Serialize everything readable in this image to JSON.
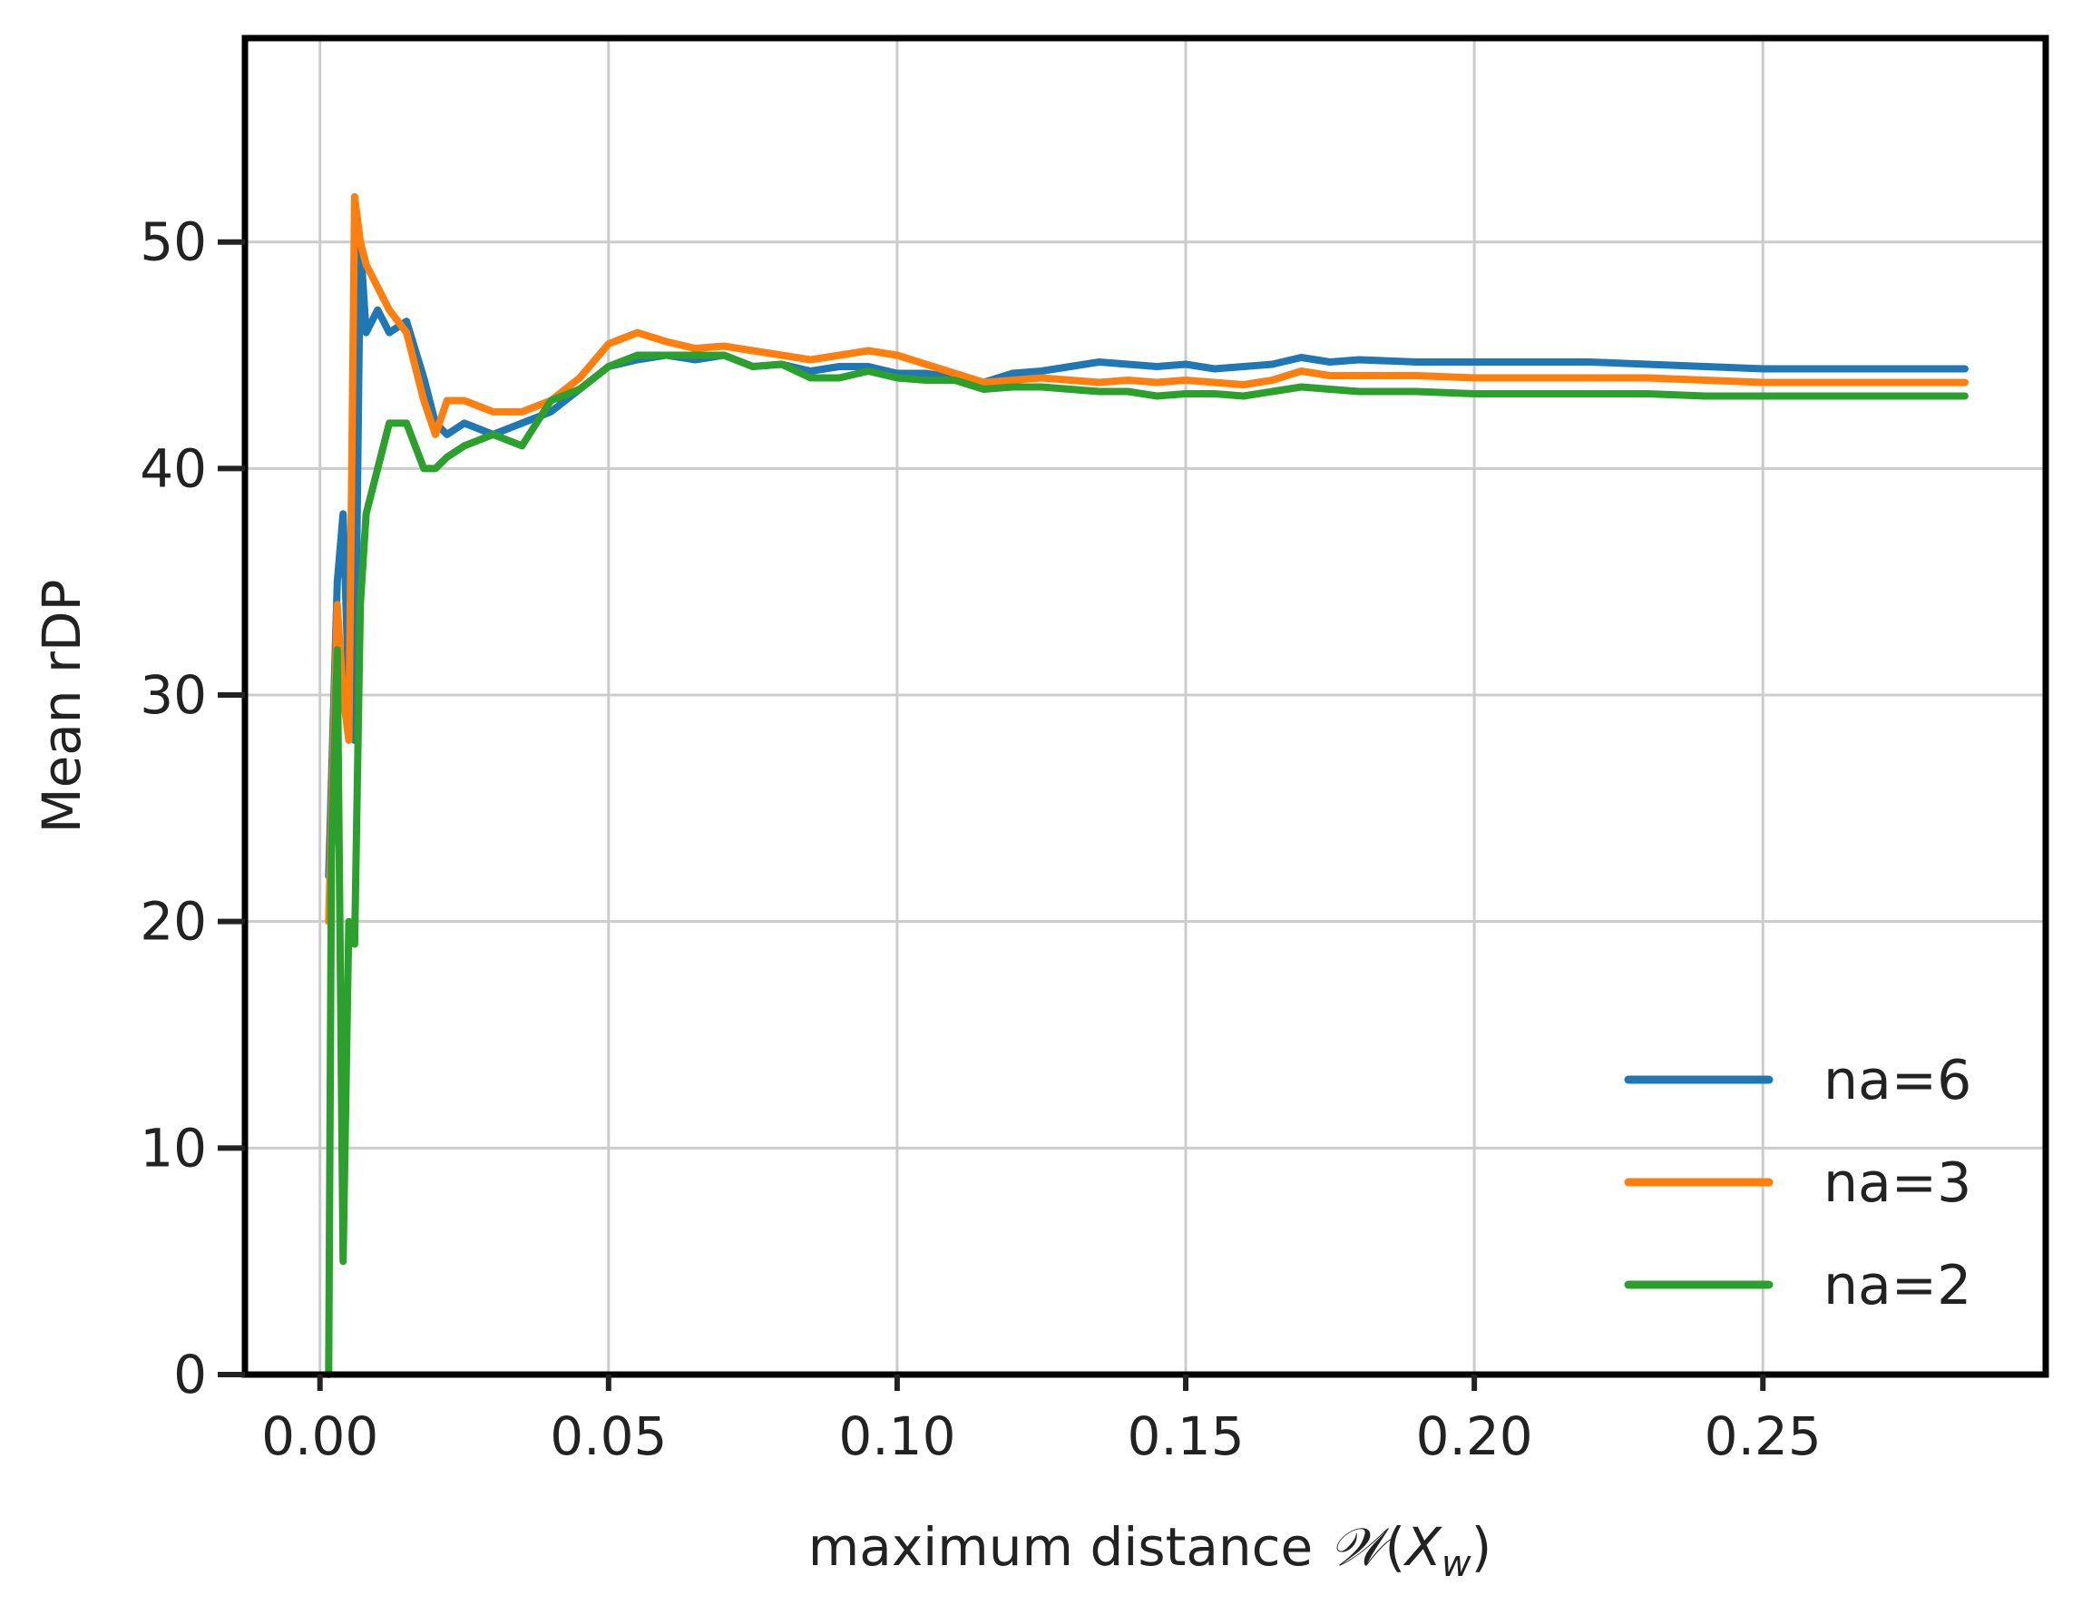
{
  "chart_data": {
    "type": "line",
    "xlabel": "maximum distance 𝒲(X_w)",
    "xlabel_parts": {
      "main": "maximum distance ",
      "symbol": "𝒲",
      "open": "(",
      "var": "X",
      "sub": "w",
      "close": ")"
    },
    "ylabel": "Mean rDP",
    "xlim": [
      -0.013,
      0.299
    ],
    "ylim": [
      0,
      59
    ],
    "x_ticks": [
      0.0,
      0.05,
      0.1,
      0.15,
      0.2,
      0.25
    ],
    "x_tick_labels": [
      "0.00",
      "0.05",
      "0.10",
      "0.15",
      "0.20",
      "0.25"
    ],
    "y_ticks": [
      0,
      10,
      20,
      30,
      40,
      50
    ],
    "y_tick_labels": [
      "0",
      "10",
      "20",
      "30",
      "40",
      "50"
    ],
    "grid": true,
    "legend_position": "bottom-right",
    "series": [
      {
        "name": "na=6",
        "color": "#1f77b4",
        "x": [
          0.0015,
          0.003,
          0.004,
          0.005,
          0.006,
          0.007,
          0.008,
          0.01,
          0.012,
          0.015,
          0.018,
          0.02,
          0.022,
          0.025,
          0.03,
          0.035,
          0.04,
          0.045,
          0.05,
          0.055,
          0.06,
          0.065,
          0.07,
          0.075,
          0.08,
          0.085,
          0.09,
          0.095,
          0.1,
          0.105,
          0.11,
          0.115,
          0.12,
          0.125,
          0.13,
          0.135,
          0.14,
          0.145,
          0.15,
          0.155,
          0.16,
          0.165,
          0.17,
          0.175,
          0.18,
          0.19,
          0.2,
          0.21,
          0.22,
          0.23,
          0.24,
          0.25,
          0.26,
          0.27,
          0.285
        ],
        "y": [
          22,
          35,
          38,
          30,
          28,
          50,
          46,
          47,
          46,
          46.5,
          44,
          42,
          41.5,
          42,
          41.5,
          42,
          42.5,
          43.5,
          44.5,
          44.8,
          45,
          44.8,
          45,
          44.5,
          44.6,
          44.3,
          44.5,
          44.5,
          44.2,
          44.2,
          44,
          43.8,
          44.2,
          44.3,
          44.5,
          44.7,
          44.6,
          44.5,
          44.6,
          44.4,
          44.5,
          44.6,
          44.9,
          44.7,
          44.8,
          44.7,
          44.7,
          44.7,
          44.7,
          44.6,
          44.5,
          44.4,
          44.4,
          44.4,
          44.4
        ]
      },
      {
        "name": "na=3",
        "color": "#ff7f0e",
        "x": [
          0.0015,
          0.003,
          0.004,
          0.005,
          0.006,
          0.007,
          0.008,
          0.01,
          0.012,
          0.015,
          0.018,
          0.02,
          0.022,
          0.025,
          0.03,
          0.035,
          0.04,
          0.045,
          0.05,
          0.055,
          0.06,
          0.065,
          0.07,
          0.075,
          0.08,
          0.085,
          0.09,
          0.095,
          0.1,
          0.105,
          0.11,
          0.115,
          0.12,
          0.125,
          0.13,
          0.135,
          0.14,
          0.145,
          0.15,
          0.155,
          0.16,
          0.165,
          0.17,
          0.175,
          0.18,
          0.19,
          0.2,
          0.21,
          0.22,
          0.23,
          0.24,
          0.25,
          0.26,
          0.27,
          0.285
        ],
        "y": [
          20,
          34,
          30,
          28,
          52,
          50,
          49,
          48,
          47,
          46,
          43,
          41.5,
          43,
          43,
          42.5,
          42.5,
          43,
          44,
          45.5,
          46,
          45.6,
          45.3,
          45.4,
          45.2,
          45,
          44.8,
          45,
          45.2,
          45,
          44.6,
          44.2,
          43.8,
          43.9,
          44,
          43.9,
          43.8,
          43.9,
          43.8,
          43.9,
          43.8,
          43.7,
          43.9,
          44.3,
          44.1,
          44.1,
          44.1,
          44.0,
          44.0,
          44.0,
          44.0,
          43.9,
          43.8,
          43.8,
          43.8,
          43.8
        ]
      },
      {
        "name": "na=2",
        "color": "#2ca02c",
        "x": [
          0.0015,
          0.002,
          0.003,
          0.004,
          0.005,
          0.006,
          0.007,
          0.008,
          0.01,
          0.012,
          0.015,
          0.018,
          0.02,
          0.022,
          0.025,
          0.03,
          0.035,
          0.04,
          0.045,
          0.05,
          0.055,
          0.06,
          0.065,
          0.07,
          0.075,
          0.08,
          0.085,
          0.09,
          0.095,
          0.1,
          0.105,
          0.11,
          0.115,
          0.12,
          0.125,
          0.13,
          0.135,
          0.14,
          0.145,
          0.15,
          0.155,
          0.16,
          0.165,
          0.17,
          0.175,
          0.18,
          0.19,
          0.2,
          0.21,
          0.22,
          0.23,
          0.24,
          0.25,
          0.26,
          0.27,
          0.285
        ],
        "y": [
          0,
          23,
          32,
          5,
          20,
          19,
          34,
          38,
          40,
          42,
          42,
          40,
          40,
          40.5,
          41,
          41.5,
          41,
          43,
          43.5,
          44.5,
          45,
          45,
          45,
          45,
          44.5,
          44.6,
          44,
          44,
          44.3,
          44,
          43.9,
          43.9,
          43.5,
          43.6,
          43.6,
          43.5,
          43.4,
          43.4,
          43.2,
          43.3,
          43.3,
          43.2,
          43.4,
          43.6,
          43.5,
          43.4,
          43.4,
          43.3,
          43.3,
          43.3,
          43.3,
          43.2,
          43.2,
          43.2,
          43.2,
          43.2
        ]
      }
    ]
  }
}
